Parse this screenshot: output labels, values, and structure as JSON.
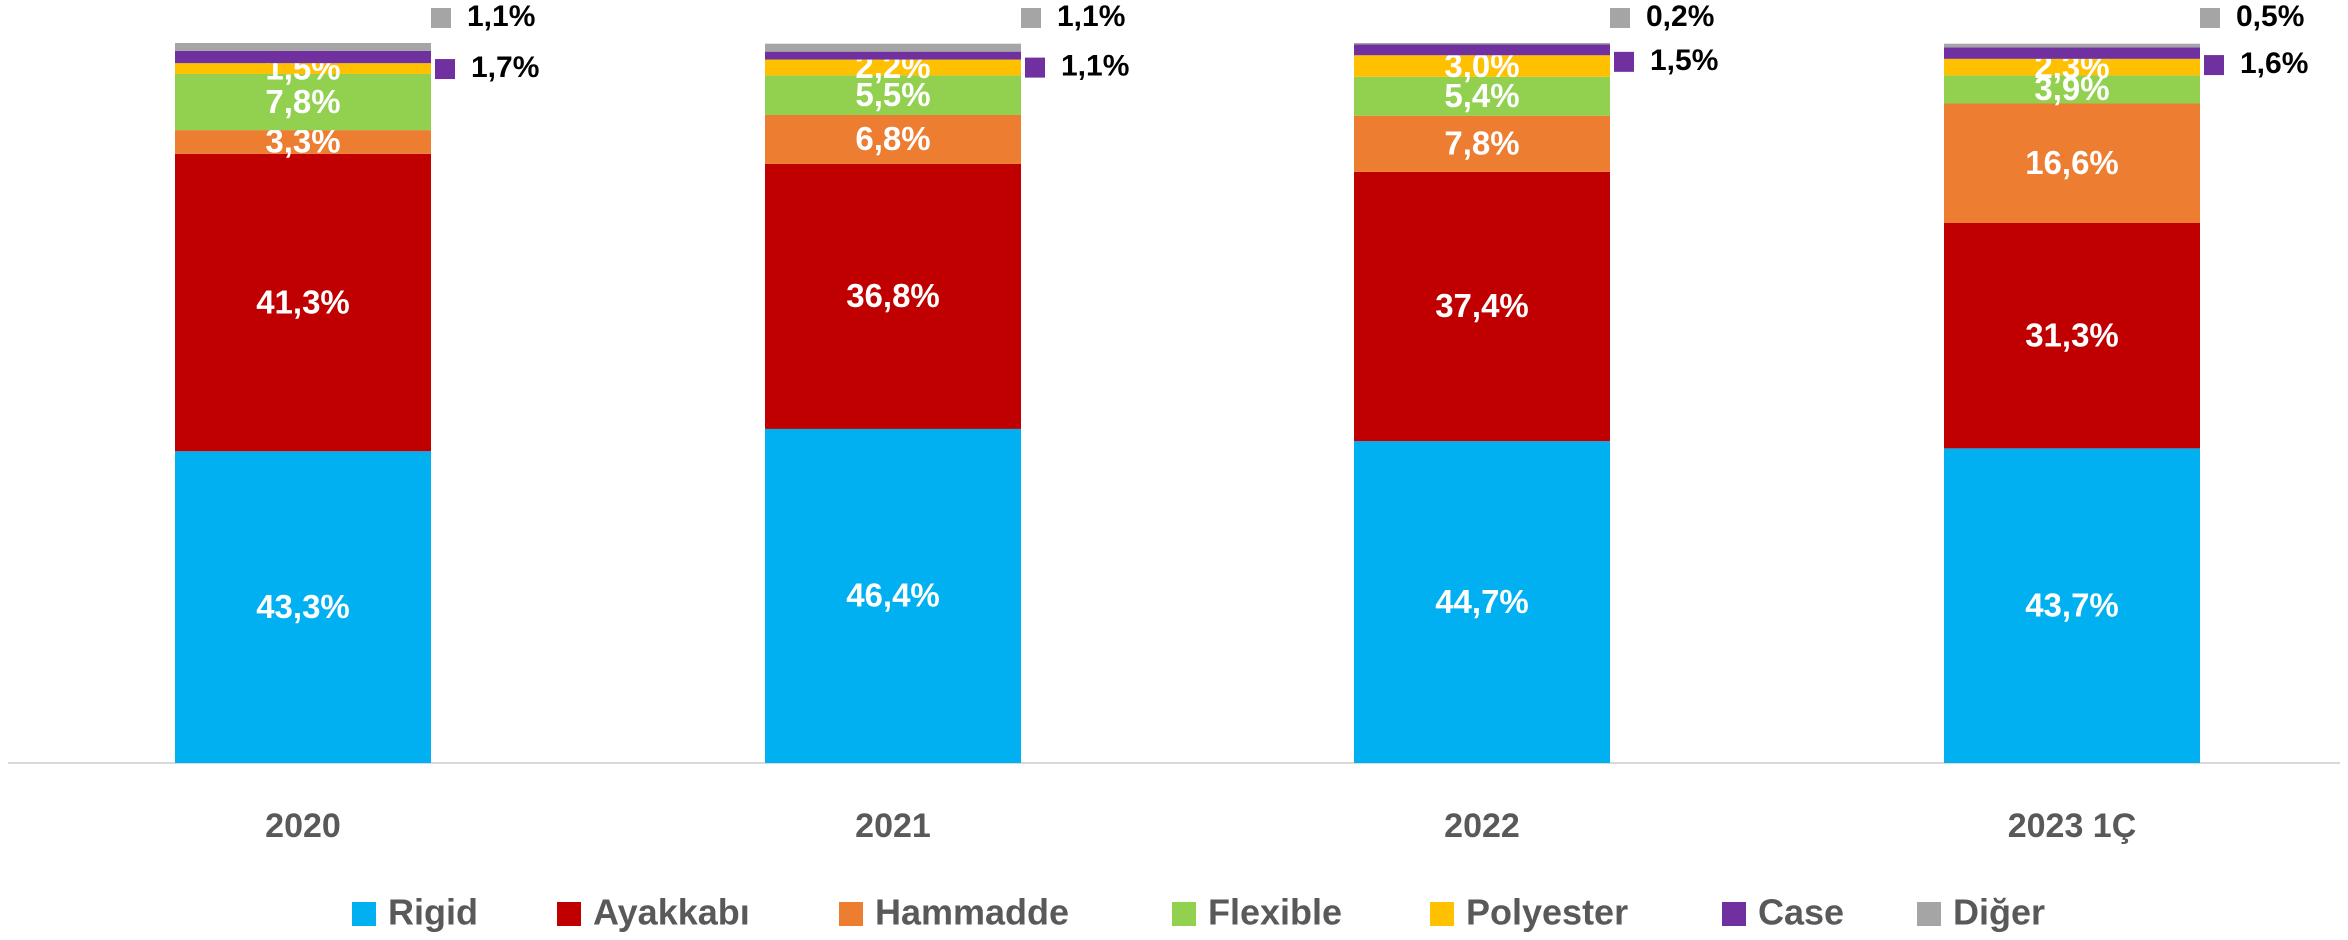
{
  "chart_data": {
    "type": "stacked_bar",
    "categories": [
      "2020",
      "2021",
      "2022",
      "2023 1Ç"
    ],
    "ylim": [
      0,
      100
    ],
    "legend": "bottom",
    "series": [
      {
        "name": "Rigid",
        "color": "#00b0f0",
        "values": [
          43.3,
          46.4,
          44.7,
          43.7
        ],
        "value_labels": [
          "43,3%",
          "46,4%",
          "44,7%",
          "43,7%"
        ]
      },
      {
        "name": "Ayakkabı",
        "color": "#c00000",
        "values": [
          41.3,
          36.8,
          37.4,
          31.3
        ],
        "value_labels": [
          "41,3%",
          "36,8%",
          "37,4%",
          "31,3%"
        ]
      },
      {
        "name": "Hammadde",
        "color": "#ed7d31",
        "values": [
          3.3,
          6.8,
          7.8,
          16.6
        ],
        "value_labels": [
          "3,3%",
          "6,8%",
          "7,8%",
          "16,6%"
        ]
      },
      {
        "name": "Flexible",
        "color": "#92d050",
        "values": [
          7.8,
          5.5,
          5.4,
          3.9
        ],
        "value_labels": [
          "7,8%",
          "5,5%",
          "5,4%",
          "3,9%"
        ]
      },
      {
        "name": "Polyester",
        "color": "#ffc000",
        "values": [
          1.5,
          2.2,
          3.0,
          2.3
        ],
        "value_labels": [
          "1,5%",
          "2,2%",
          "3,0%",
          "2,3%"
        ]
      },
      {
        "name": "Case",
        "color": "#7030a0",
        "values": [
          1.7,
          1.1,
          1.5,
          1.6
        ],
        "value_labels": [
          "1,7%",
          "1,1%",
          "1,5%",
          "1,6%"
        ]
      },
      {
        "name": "Diğer",
        "color": "#a5a5a5",
        "values": [
          1.1,
          1.1,
          0.2,
          0.5
        ],
        "value_labels": [
          "1,1%",
          "1,1%",
          "0,2%",
          "0,5%"
        ]
      }
    ]
  }
}
